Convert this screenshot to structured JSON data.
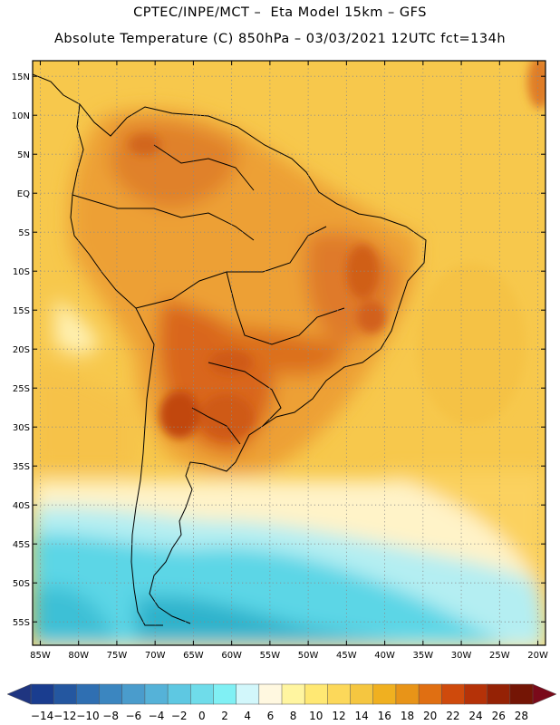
{
  "header": {
    "line1": "CPTEC/INPE/MCT –  Eta Model 15km – GFS",
    "line2": "Absolute Temperature (C) 850hPa – 03/03/2021 12UTC fct=134h"
  },
  "map": {
    "lon_ticks": [
      "85W",
      "80W",
      "75W",
      "70W",
      "65W",
      "60W",
      "55W",
      "50W",
      "45W",
      "40W",
      "35W",
      "30W",
      "25W",
      "20W"
    ],
    "lat_ticks": [
      "15N",
      "10N",
      "5N",
      "EQ",
      "5S",
      "10S",
      "15S",
      "20S",
      "25S",
      "30S",
      "35S",
      "40S",
      "45S",
      "50S",
      "55S"
    ],
    "lon_range": [
      -86,
      -19
    ],
    "lat_range": [
      17,
      -58
    ],
    "grid": "dotted"
  },
  "colorbar": {
    "labels": [
      "-14",
      "-12",
      "-10",
      "-8",
      "-6",
      "-4",
      "-2",
      "0",
      "2",
      "4",
      "6",
      "8",
      "10",
      "12",
      "14",
      "16",
      "18",
      "20",
      "22",
      "24",
      "26",
      "28"
    ],
    "colors": [
      "#1a3d8f",
      "#2457a0",
      "#2f6fb2",
      "#3b86c0",
      "#4a9ccc",
      "#55b2d8",
      "#5ec8e2",
      "#6fdcea",
      "#80f0f4",
      "#d2f7fb",
      "#fff8e0",
      "#fff5a0",
      "#ffe873",
      "#fcd85a",
      "#f5c640",
      "#f0b020",
      "#e89418",
      "#e06f12",
      "#cf4a0c",
      "#b53208",
      "#952205",
      "#741505"
    ],
    "under_color": "#1f3580",
    "over_color": "#7a0a1a"
  },
  "palette": {
    "cold_deep": "#2ab0c8",
    "cold": "#5bdcea",
    "cool": "#a8eef4",
    "mild": "#fff3c0",
    "warm_light": "#fcd35a",
    "warm": "#f2b030",
    "hot": "#e88a1c",
    "hotter": "#d9661a",
    "hottest": "#c14a10",
    "coast": "#000000"
  }
}
